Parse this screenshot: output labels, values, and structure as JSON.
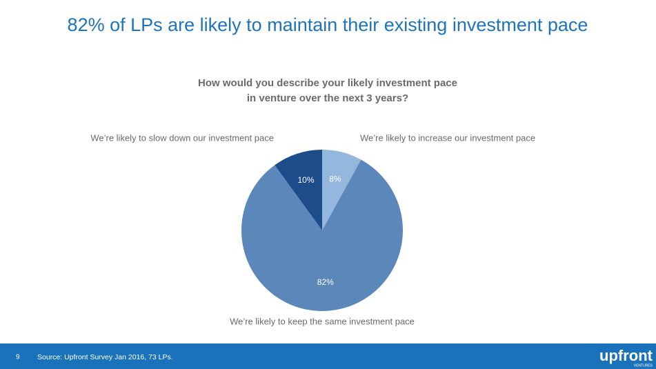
{
  "chart_data": {
    "type": "pie",
    "title": "82% of LPs are likely to maintain their existing investment pace",
    "subtitle": [
      "How would you describe your likely investment pace",
      "in venture over the next 3 years?"
    ],
    "categories": [
      "We’re likely to increase our investment pace",
      "We’re likely to keep the same investment pace",
      "We’re likely to slow down our investment pace"
    ],
    "values": [
      8,
      82,
      10
    ],
    "value_labels": [
      "8%",
      "82%",
      "10%"
    ],
    "colors": [
      "#94b8dd",
      "#5b87bb",
      "#1d4c8a"
    ]
  },
  "footer": {
    "page": "9",
    "source": "Source: Upfront Survey Jan 2016, 73 LPs.",
    "logo": "upfront",
    "logo_sub": "VENTURES"
  }
}
